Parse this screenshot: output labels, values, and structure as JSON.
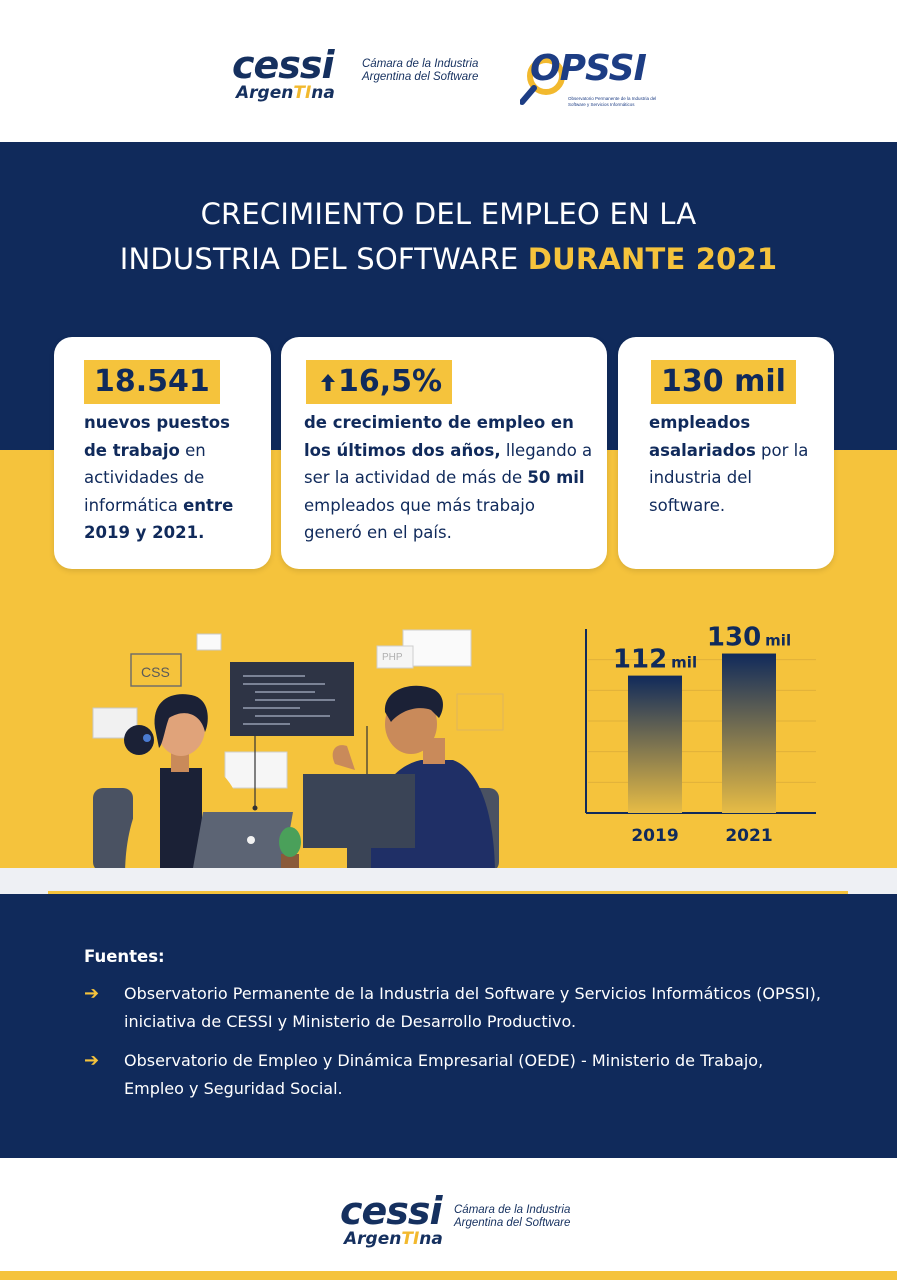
{
  "header": {
    "cessi_logo_word": "cessi",
    "cessi_logo_sub_a": "Argen",
    "cessi_logo_sub_ti": "TI",
    "cessi_logo_sub_b": "na",
    "cessi_tagline_1": "Cámara de la Industria",
    "cessi_tagline_2": "Argentina del Software",
    "opssi_logo_word": "OPSSI",
    "opssi_sub": "Observatorio Permanente de la Industria del Software y Servicios Informáticos"
  },
  "title": {
    "line1": "CRECIMIENTO DEL EMPLEO EN LA",
    "line2_main": "INDUSTRIA DEL SOFTWARE ",
    "line2_highlight": "DURANTE 2021"
  },
  "cards": [
    {
      "value": "18.541",
      "parts": [
        {
          "t": "nuevos puestos de trabajo",
          "b": true
        },
        {
          "t": " en actividades de informática ",
          "b": false
        },
        {
          "t": "entre 2019 y 2021.",
          "b": true
        }
      ]
    },
    {
      "value": "16,5%",
      "parts": [
        {
          "t": "de crecimiento de empleo en los últimos dos años,",
          "b": true
        },
        {
          "t": " llegando a ser la actividad de más de ",
          "b": false
        },
        {
          "t": "50 mil",
          "b": true
        },
        {
          "t": " empleados que más trabajo generó en el país.",
          "b": false
        }
      ]
    },
    {
      "value": "130 mil",
      "parts": [
        {
          "t": "empleados asalariados",
          "b": true
        },
        {
          "t": " por la industria del software.",
          "b": false
        }
      ]
    }
  ],
  "illustration": {
    "css_tag": "CSS",
    "php_tag": "PHP",
    "colors": {
      "jacket": "#f5c33c",
      "shirt": "#102a5b",
      "skin": "#c98a5a",
      "hair": "#1b2136",
      "monitor": "#3a4456"
    }
  },
  "chart_data": {
    "type": "bar",
    "categories": [
      "2019",
      "2021"
    ],
    "values": [
      112,
      130
    ],
    "value_labels": [
      "112",
      "130"
    ],
    "unit_label": "mil",
    "ylim": [
      0,
      150
    ],
    "colors": {
      "top": "#102a5b",
      "bottom": "#f5c33c"
    }
  },
  "sources": {
    "heading": "Fuentes:",
    "items": [
      "Observatorio Permanente de la Industria del Software y Servicios Informáticos (OPSSI), iniciativa de CESSI y Ministerio de Desarrollo Productivo.",
      "Observatorio de Empleo y Dinámica Empresarial (OEDE) - Ministerio de Trabajo, Empleo y Seguridad Social."
    ],
    "arrow": "➔"
  },
  "footer": {
    "cessi_logo_word": "cessi",
    "cessi_logo_sub_a": "Argen",
    "cessi_logo_sub_ti": "TI",
    "cessi_logo_sub_b": "na",
    "tagline_1": "Cámara de la Industria",
    "tagline_2": "Argentina del Software"
  }
}
